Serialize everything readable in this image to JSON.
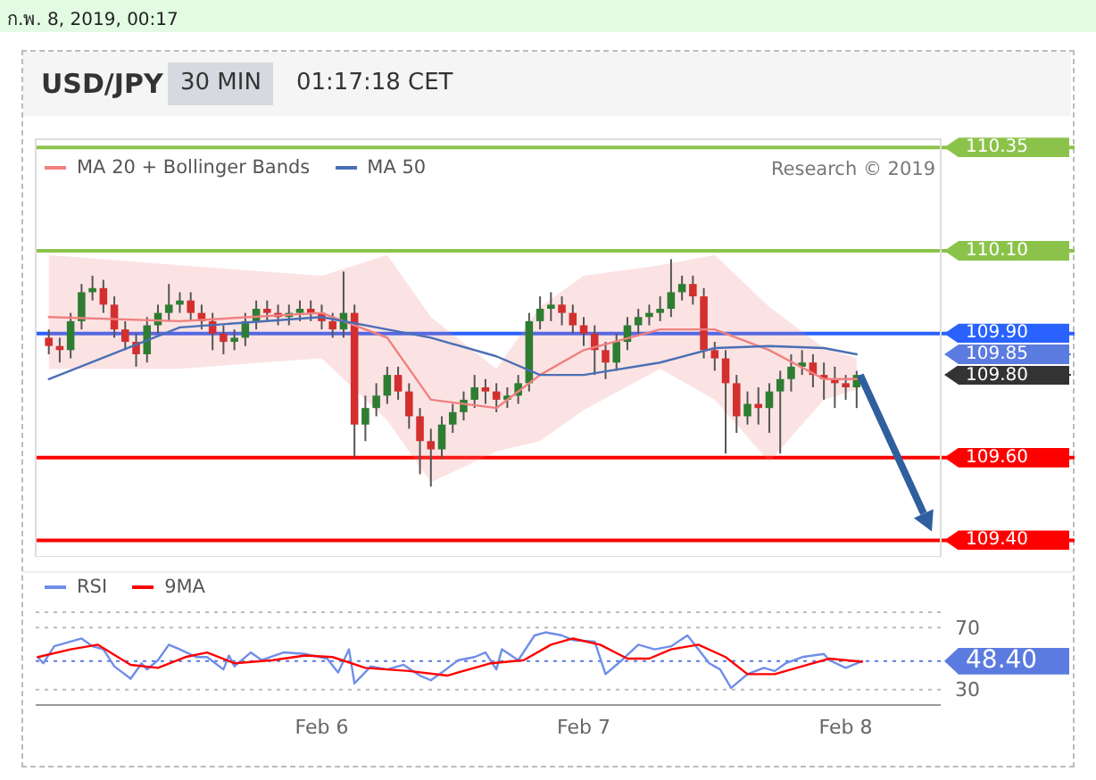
{
  "chart_data": [
    {
      "type": "candlestick",
      "title": "USD/JPY",
      "subtitle": "30 MIN",
      "annotations": [
        "ก.พ. 8, 2019, 00:17",
        "01:17:18 CET",
        "Research © 2019"
      ],
      "x": [
        "2019-02-04T23:00",
        "2019-02-05T00:00",
        "2019-02-05T01:00",
        "2019-02-05T02:00",
        "2019-02-05T03:00",
        "2019-02-05T04:00",
        "2019-02-05T05:00",
        "2019-02-05T06:00",
        "2019-02-05T07:00",
        "2019-02-05T08:00",
        "2019-02-05T09:00",
        "2019-02-05T10:00",
        "2019-02-05T11:00",
        "2019-02-05T12:00",
        "2019-02-05T13:00",
        "2019-02-05T14:00",
        "2019-02-05T15:00",
        "2019-02-05T16:00",
        "2019-02-05T17:00",
        "2019-02-05T18:00",
        "2019-02-05T19:00",
        "2019-02-05T20:00",
        "2019-02-05T21:00",
        "2019-02-05T22:00",
        "2019-02-05T23:00",
        "2019-02-06T00:00",
        "2019-02-06T01:00",
        "2019-02-06T02:00",
        "2019-02-06T03:00",
        "2019-02-06T04:00",
        "2019-02-06T05:00",
        "2019-02-06T06:00",
        "2019-02-06T07:00",
        "2019-02-06T08:00",
        "2019-02-06T09:00",
        "2019-02-06T10:00",
        "2019-02-06T11:00",
        "2019-02-06T12:00",
        "2019-02-06T13:00",
        "2019-02-06T14:00",
        "2019-02-06T15:00",
        "2019-02-06T16:00",
        "2019-02-06T17:00",
        "2019-02-06T18:00",
        "2019-02-06T19:00",
        "2019-02-06T20:00",
        "2019-02-06T21:00",
        "2019-02-06T22:00",
        "2019-02-06T23:00",
        "2019-02-07T00:00",
        "2019-02-07T01:00",
        "2019-02-07T02:00",
        "2019-02-07T03:00",
        "2019-02-07T04:00",
        "2019-02-07T05:00",
        "2019-02-07T06:00",
        "2019-02-07T07:00",
        "2019-02-07T08:00",
        "2019-02-07T09:00",
        "2019-02-07T10:00",
        "2019-02-07T11:00",
        "2019-02-07T12:00",
        "2019-02-07T13:00",
        "2019-02-07T14:00",
        "2019-02-07T15:00",
        "2019-02-07T16:00",
        "2019-02-07T17:00",
        "2019-02-07T18:00",
        "2019-02-07T19:00",
        "2019-02-07T20:00",
        "2019-02-07T21:00",
        "2019-02-07T22:00",
        "2019-02-07T23:00",
        "2019-02-08T00:00",
        "2019-02-08T01:00"
      ],
      "ohlc": [
        [
          109.89,
          109.91,
          109.85,
          109.87
        ],
        [
          109.87,
          109.89,
          109.83,
          109.86
        ],
        [
          109.86,
          109.95,
          109.84,
          109.93
        ],
        [
          109.93,
          110.02,
          109.91,
          110.0
        ],
        [
          110.0,
          110.04,
          109.98,
          110.01
        ],
        [
          110.01,
          110.03,
          109.95,
          109.97
        ],
        [
          109.97,
          109.99,
          109.89,
          109.91
        ],
        [
          109.91,
          109.93,
          109.86,
          109.88
        ],
        [
          109.88,
          109.9,
          109.82,
          109.85
        ],
        [
          109.85,
          109.94,
          109.83,
          109.92
        ],
        [
          109.92,
          109.97,
          109.9,
          109.95
        ],
        [
          109.95,
          110.02,
          109.93,
          109.97
        ],
        [
          109.97,
          110.0,
          109.95,
          109.98
        ],
        [
          109.98,
          110.0,
          109.93,
          109.95
        ],
        [
          109.95,
          109.97,
          109.91,
          109.93
        ],
        [
          109.93,
          109.95,
          109.86,
          109.9
        ],
        [
          109.9,
          109.92,
          109.85,
          109.88
        ],
        [
          109.88,
          109.91,
          109.86,
          109.89
        ],
        [
          109.89,
          109.95,
          109.87,
          109.93
        ],
        [
          109.93,
          109.98,
          109.91,
          109.96
        ],
        [
          109.96,
          109.98,
          109.93,
          109.95
        ],
        [
          109.95,
          109.97,
          109.92,
          109.94
        ],
        [
          109.94,
          109.97,
          109.92,
          109.95
        ],
        [
          109.95,
          109.98,
          109.93,
          109.96
        ],
        [
          109.96,
          109.98,
          109.93,
          109.95
        ],
        [
          109.95,
          109.97,
          109.91,
          109.93
        ],
        [
          109.93,
          109.95,
          109.89,
          109.91
        ],
        [
          109.91,
          110.05,
          109.89,
          109.95
        ],
        [
          109.95,
          109.97,
          109.6,
          109.68
        ],
        [
          109.68,
          109.75,
          109.64,
          109.72
        ],
        [
          109.72,
          109.78,
          109.7,
          109.75
        ],
        [
          109.75,
          109.82,
          109.73,
          109.8
        ],
        [
          109.8,
          109.82,
          109.74,
          109.76
        ],
        [
          109.76,
          109.78,
          109.67,
          109.7
        ],
        [
          109.7,
          109.72,
          109.56,
          109.64
        ],
        [
          109.64,
          109.67,
          109.53,
          109.62
        ],
        [
          109.62,
          109.7,
          109.6,
          109.68
        ],
        [
          109.68,
          109.73,
          109.66,
          109.71
        ],
        [
          109.71,
          109.76,
          109.69,
          109.74
        ],
        [
          109.74,
          109.8,
          109.72,
          109.77
        ],
        [
          109.77,
          109.79,
          109.73,
          109.76
        ],
        [
          109.76,
          109.78,
          109.71,
          109.74
        ],
        [
          109.74,
          109.77,
          109.72,
          109.75
        ],
        [
          109.75,
          109.8,
          109.73,
          109.78
        ],
        [
          109.78,
          109.95,
          109.76,
          109.93
        ],
        [
          109.93,
          109.99,
          109.91,
          109.96
        ],
        [
          109.96,
          110.0,
          109.93,
          109.97
        ],
        [
          109.97,
          109.99,
          109.92,
          109.95
        ],
        [
          109.95,
          109.97,
          109.9,
          109.92
        ],
        [
          109.92,
          109.94,
          109.87,
          109.9
        ],
        [
          109.9,
          109.92,
          109.8,
          109.86
        ],
        [
          109.86,
          109.88,
          109.79,
          109.83
        ],
        [
          109.83,
          109.9,
          109.81,
          109.88
        ],
        [
          109.88,
          109.94,
          109.86,
          109.92
        ],
        [
          109.92,
          109.96,
          109.9,
          109.94
        ],
        [
          109.94,
          109.97,
          109.92,
          109.95
        ],
        [
          109.95,
          109.99,
          109.93,
          109.96
        ],
        [
          109.96,
          110.08,
          109.94,
          110.0
        ],
        [
          110.0,
          110.04,
          109.98,
          110.02
        ],
        [
          110.02,
          110.04,
          109.97,
          109.99
        ],
        [
          109.99,
          110.01,
          109.84,
          109.86
        ],
        [
          109.86,
          109.88,
          109.81,
          109.84
        ],
        [
          109.84,
          109.86,
          109.61,
          109.78
        ],
        [
          109.78,
          109.8,
          109.66,
          109.7
        ],
        [
          109.7,
          109.76,
          109.68,
          109.73
        ],
        [
          109.73,
          109.77,
          109.68,
          109.72
        ],
        [
          109.72,
          109.78,
          109.66,
          109.76
        ],
        [
          109.76,
          109.81,
          109.61,
          109.79
        ],
        [
          109.79,
          109.85,
          109.76,
          109.82
        ],
        [
          109.82,
          109.86,
          109.8,
          109.83
        ],
        [
          109.83,
          109.85,
          109.77,
          109.8
        ],
        [
          109.8,
          109.83,
          109.74,
          109.79
        ],
        [
          109.79,
          109.82,
          109.72,
          109.78
        ],
        [
          109.78,
          109.8,
          109.74,
          109.77
        ],
        [
          109.77,
          109.81,
          109.72,
          109.8
        ]
      ],
      "series": [
        {
          "name": "MA 20 + Bollinger Bands",
          "type": "line",
          "color": "#f08080",
          "x": [
            "2019-02-04T23:00",
            "2019-02-05T11:00",
            "2019-02-06T00:00",
            "2019-02-06T06:00",
            "2019-02-06T10:00",
            "2019-02-06T16:00",
            "2019-02-06T20:00",
            "2019-02-07T00:00",
            "2019-02-07T07:00",
            "2019-02-07T12:00",
            "2019-02-07T17:00",
            "2019-02-07T22:00",
            "2019-02-08T01:00"
          ],
          "values": [
            109.94,
            109.93,
            109.95,
            109.89,
            109.74,
            109.72,
            109.8,
            109.86,
            109.91,
            109.91,
            109.86,
            109.79,
            109.79
          ],
          "lower": [
            109.815,
            109.815,
            109.84,
            109.69,
            109.54,
            109.615,
            109.64,
            109.715,
            109.815,
            109.74,
            109.59,
            109.74,
            109.765
          ],
          "upper": [
            110.09,
            110.065,
            110.04,
            110.09,
            109.94,
            109.815,
            109.965,
            110.04,
            110.065,
            110.09,
            109.965,
            109.865,
            109.84
          ]
        },
        {
          "name": "MA 50",
          "type": "line",
          "color": "#4a6fb5",
          "x": [
            "2019-02-04T23:00",
            "2019-02-05T11:00",
            "2019-02-06T00:00",
            "2019-02-06T06:00",
            "2019-02-06T10:00",
            "2019-02-06T16:00",
            "2019-02-06T20:00",
            "2019-02-07T00:00",
            "2019-02-07T07:00",
            "2019-02-07T12:00",
            "2019-02-07T17:00",
            "2019-02-07T22:00",
            "2019-02-08T01:00"
          ],
          "values": [
            109.79,
            109.915,
            109.94,
            109.91,
            109.89,
            109.845,
            109.8,
            109.8,
            109.83,
            109.865,
            109.87,
            109.865,
            109.85
          ]
        }
      ],
      "ref_lines": [
        {
          "axis": "y",
          "value": 110.35,
          "label": "110.35",
          "color": "#8bc34a",
          "line_style": "solid"
        },
        {
          "axis": "y",
          "value": 110.1,
          "label": "110.10",
          "color": "#8bc34a",
          "line_style": "solid"
        },
        {
          "axis": "y",
          "value": 109.9,
          "label": "109.90",
          "color": "#2962ff",
          "line_style": "solid"
        },
        {
          "axis": "y",
          "value": 109.85,
          "label": "109.85",
          "color": "#5b7be0",
          "line_style": "dotted"
        },
        {
          "axis": "y",
          "value": 109.8,
          "label": "109.80",
          "color": "#333333",
          "line_style": "dotted"
        },
        {
          "axis": "y",
          "value": 109.6,
          "label": "109.60",
          "color": "#ff0000",
          "line_style": "solid"
        },
        {
          "axis": "y",
          "value": 109.4,
          "label": "109.40",
          "color": "#ff0000",
          "line_style": "solid"
        }
      ],
      "xlim": [
        "2019-02-04T21:48",
        "2019-02-08T08:42"
      ],
      "ylim": [
        109.36,
        110.37
      ],
      "tick_labels": false,
      "legend": "top left",
      "line_style": "solid",
      "marker": "none"
    },
    {
      "type": "line",
      "series": [
        {
          "name": "RSI",
          "color": "#6f8ee8",
          "x": [
            "2019-02-04T22:00",
            "2019-02-04T22:30",
            "2019-02-04T23:30",
            "2019-02-05T01:00",
            "2019-02-05T02:00",
            "2019-02-05T03:00",
            "2019-02-05T04:00",
            "2019-02-05T05:00",
            "2019-02-05T06:30",
            "2019-02-05T07:30",
            "2019-02-05T08:00",
            "2019-02-05T09:00",
            "2019-02-05T10:00",
            "2019-02-05T11:00",
            "2019-02-05T12:30",
            "2019-02-05T13:30",
            "2019-02-05T15:00",
            "2019-02-05T15:30",
            "2019-02-05T16:00",
            "2019-02-05T17:30",
            "2019-02-05T18:30",
            "2019-02-05T20:30",
            "2019-02-05T22:30",
            "2019-02-06T00:30",
            "2019-02-06T01:30",
            "2019-02-06T02:30",
            "2019-02-06T03:00",
            "2019-02-06T04:30",
            "2019-02-06T06:00",
            "2019-02-06T07:30",
            "2019-02-06T09:00",
            "2019-02-06T10:00",
            "2019-02-06T11:00",
            "2019-02-06T12:30",
            "2019-02-06T14:00",
            "2019-02-06T15:00",
            "2019-02-06T16:00",
            "2019-02-06T16:30",
            "2019-02-06T18:00",
            "2019-02-06T19:30",
            "2019-02-06T20:30",
            "2019-02-06T22:00",
            "2019-02-06T23:00",
            "2019-02-07T01:00",
            "2019-02-07T02:00",
            "2019-02-07T03:30",
            "2019-02-07T05:00",
            "2019-02-07T06:30",
            "2019-02-07T08:00",
            "2019-02-07T09:30",
            "2019-02-07T10:30",
            "2019-02-07T11:30",
            "2019-02-07T12:30",
            "2019-02-07T13:30",
            "2019-02-07T15:00",
            "2019-02-07T16:30",
            "2019-02-07T17:30",
            "2019-02-07T18:30",
            "2019-02-07T20:00",
            "2019-02-07T22:00",
            "2019-02-07T22:30",
            "2019-02-08T00:00",
            "2019-02-08T01:30"
          ],
          "values": [
            51,
            47,
            58,
            61,
            63,
            58,
            56,
            45,
            37,
            47,
            43,
            49,
            59,
            56,
            51,
            51,
            43,
            52,
            45,
            54,
            49,
            54,
            53,
            50,
            41,
            56,
            34,
            45,
            43,
            46,
            39,
            36,
            41,
            49,
            51,
            54,
            43,
            56,
            49,
            65,
            67,
            65,
            62,
            61,
            40,
            49,
            59,
            56,
            58,
            65,
            56,
            47,
            43,
            31,
            40,
            44,
            42,
            47,
            51,
            53,
            49,
            44,
            48.4
          ]
        },
        {
          "name": "9MA",
          "color": "#ff0000",
          "x": [
            "2019-02-04T22:00",
            "2019-02-05T01:00",
            "2019-02-05T03:30",
            "2019-02-05T06:30",
            "2019-02-05T09:00",
            "2019-02-05T11:30",
            "2019-02-05T13:30",
            "2019-02-05T16:00",
            "2019-02-05T19:30",
            "2019-02-05T22:30",
            "2019-02-06T01:00",
            "2019-02-06T04:00",
            "2019-02-06T08:00",
            "2019-02-06T11:30",
            "2019-02-06T15:30",
            "2019-02-06T18:30",
            "2019-02-06T21:00",
            "2019-02-06T23:00",
            "2019-02-07T01:30",
            "2019-02-07T04:00",
            "2019-02-07T06:00",
            "2019-02-07T08:00",
            "2019-02-07T10:30",
            "2019-02-07T13:00",
            "2019-02-07T15:00",
            "2019-02-07T17:30",
            "2019-02-07T20:30",
            "2019-02-07T22:30",
            "2019-02-08T01:30"
          ],
          "values": [
            51,
            56,
            59,
            46,
            44,
            51,
            54,
            47,
            49,
            52,
            51,
            44,
            42,
            39,
            47,
            49,
            59,
            63,
            59,
            50,
            50,
            56,
            59,
            51,
            40,
            40,
            46,
            50,
            48
          ]
        }
      ],
      "ref_lines": [
        {
          "axis": "y",
          "value": 48.4,
          "label": "48.40",
          "color": "#5b7be0",
          "line_style": "dotted"
        }
      ],
      "xlim": [
        "2019-02-04T21:48",
        "2019-02-08T08:42"
      ],
      "xticks": [
        {
          "value": "2019-02-06",
          "label": "Feb 6"
        },
        {
          "value": "2019-02-07",
          "label": "Feb 7"
        },
        {
          "value": "2019-02-08",
          "label": "Feb 8"
        }
      ],
      "ylim": [
        20,
        80
      ],
      "yticks": [
        70,
        30
      ],
      "grid": "y",
      "legend": "top left",
      "line_style": "solid",
      "marker": "none"
    }
  ]
}
